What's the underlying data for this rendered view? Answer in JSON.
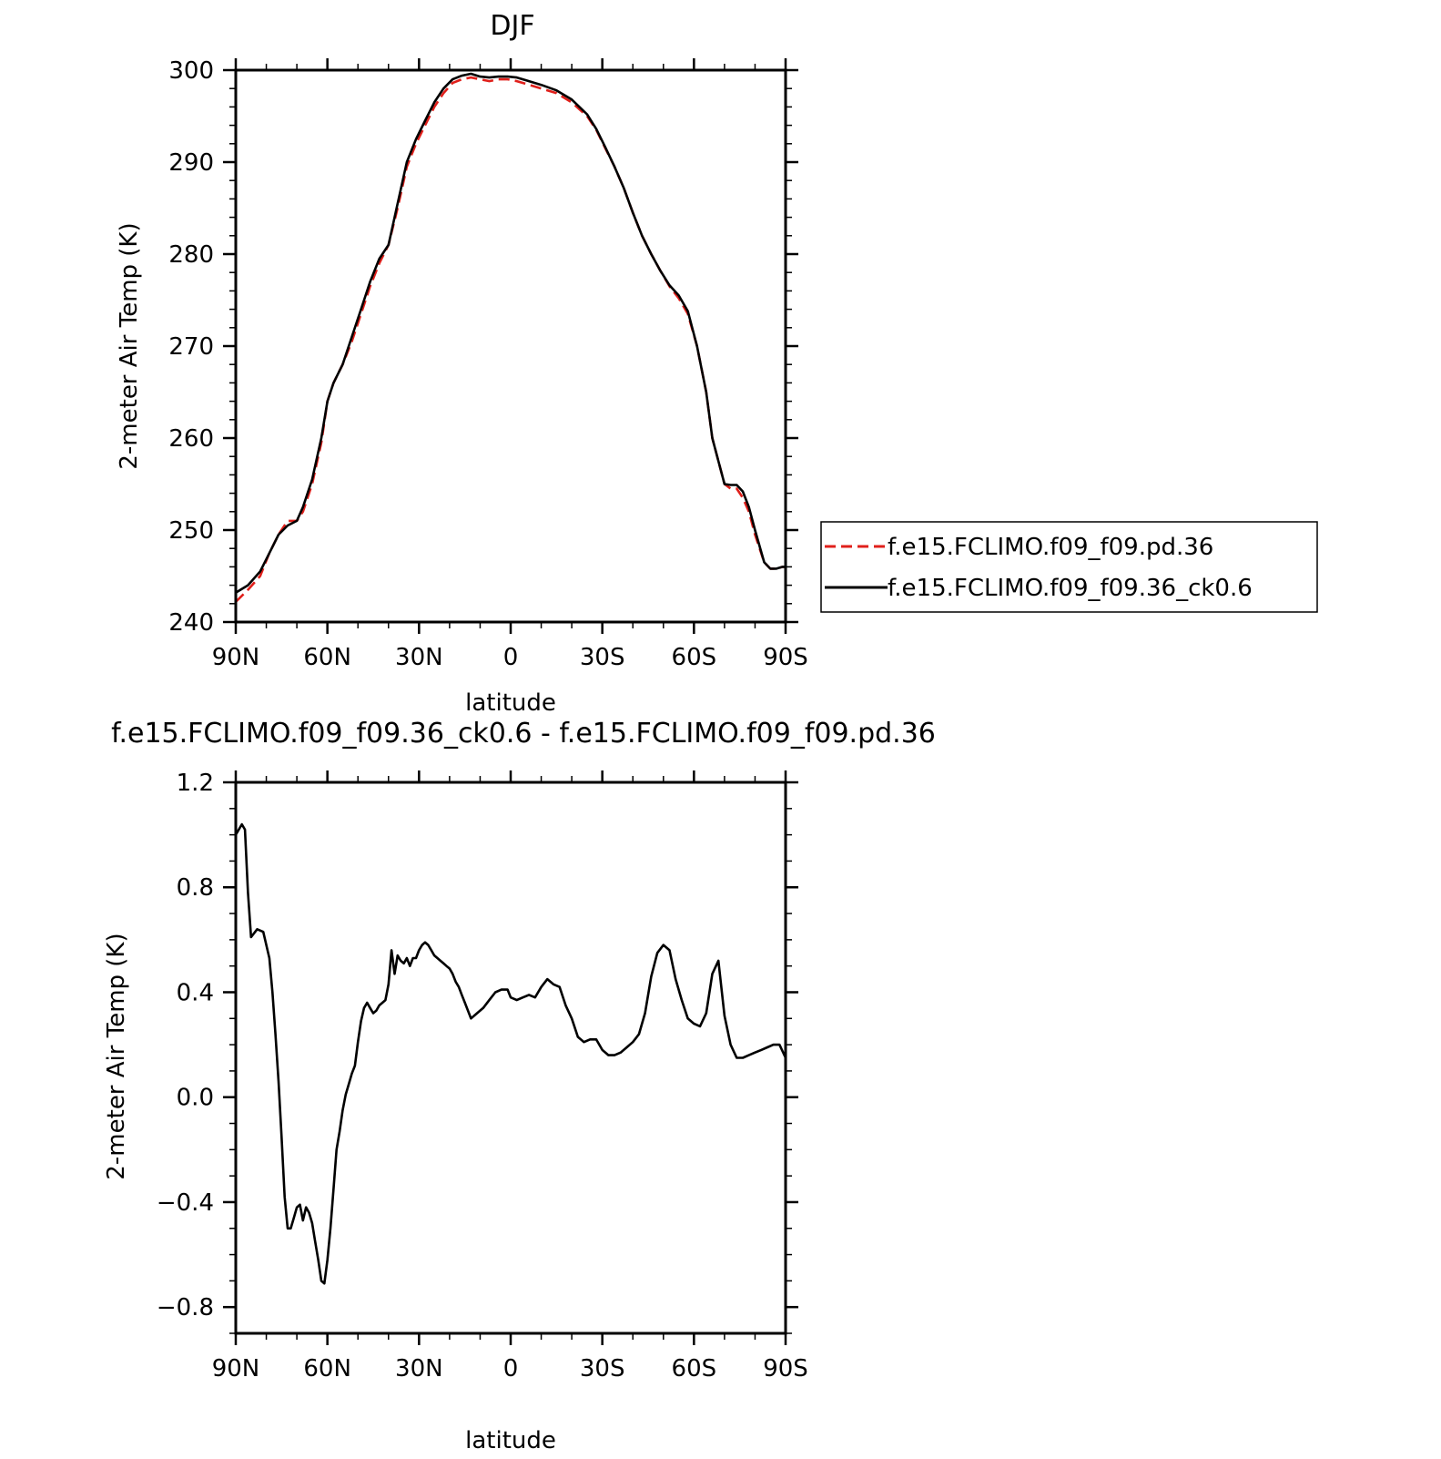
{
  "colors": {
    "control": "#e0201b",
    "experiment": "#000000",
    "axis": "#000000",
    "background": "#ffffff"
  },
  "chart_data": [
    {
      "type": "line",
      "title": "DJF",
      "xlabel": "latitude",
      "ylabel": "2-meter Air Temp (K)",
      "xlim": [
        90,
        -90
      ],
      "ylim": [
        240,
        300
      ],
      "x_ticks": [
        90,
        60,
        30,
        0,
        -30,
        -60,
        -90
      ],
      "x_tick_labels": [
        "90N",
        "60N",
        "30N",
        "0",
        "30S",
        "60S",
        "90S"
      ],
      "y_ticks": [
        240,
        250,
        260,
        270,
        280,
        290,
        300
      ],
      "y_tick_labels": [
        "240",
        "250",
        "260",
        "270",
        "280",
        "290",
        "300"
      ],
      "grid": false,
      "legend_position": "right",
      "series": [
        {
          "name": "f.e15.FCLIMO.f09_f09.pd.36",
          "style": "dashed",
          "color": "#e0201b",
          "x": [
            90,
            86,
            82,
            79,
            76,
            73,
            70,
            68,
            65,
            62,
            60,
            58,
            55,
            52,
            49,
            46,
            43,
            40,
            37,
            34,
            31,
            28,
            25,
            22,
            19,
            16,
            13,
            10,
            7,
            4,
            1,
            -2,
            -5,
            -10,
            -15,
            -20,
            -25,
            -28,
            -31,
            -34,
            -37,
            -40,
            -43,
            -46,
            -49,
            -52,
            -55,
            -58,
            -61,
            -64,
            -66,
            -68,
            -70,
            -72,
            -74,
            -76,
            -78,
            -80,
            -83,
            -85,
            -87,
            -89,
            -90
          ],
          "y": [
            242.2,
            243.5,
            245.0,
            247.5,
            249.5,
            251.0,
            251.0,
            252.0,
            255.0,
            259.5,
            264.0,
            266.0,
            268.0,
            270.5,
            273.5,
            276.5,
            279.0,
            281.0,
            285.0,
            289.5,
            292.0,
            294.0,
            296.0,
            297.5,
            298.6,
            299.0,
            299.2,
            299.0,
            298.8,
            299.0,
            299.0,
            298.8,
            298.5,
            298.0,
            297.5,
            296.5,
            295.0,
            293.5,
            291.5,
            289.5,
            287.2,
            284.5,
            282.0,
            280.0,
            278.2,
            276.5,
            275.2,
            273.5,
            270.0,
            265.0,
            260.0,
            257.5,
            255.0,
            254.5,
            254.5,
            253.5,
            252.0,
            249.5,
            246.5,
            245.8,
            245.8,
            246.0,
            246.0
          ]
        },
        {
          "name": "f.e15.FCLIMO.f09_f09.36_ck0.6",
          "style": "solid",
          "color": "#000000",
          "x": [
            90,
            86,
            82,
            79,
            76,
            73,
            70,
            68,
            65,
            62,
            60,
            58,
            55,
            52,
            49,
            46,
            43,
            40,
            37,
            34,
            31,
            28,
            25,
            22,
            19,
            16,
            13,
            10,
            7,
            4,
            1,
            -2,
            -5,
            -10,
            -15,
            -20,
            -25,
            -28,
            -31,
            -34,
            -37,
            -40,
            -43,
            -46,
            -49,
            -52,
            -55,
            -58,
            -61,
            -64,
            -66,
            -68,
            -70,
            -72,
            -74,
            -76,
            -78,
            -80,
            -83,
            -85,
            -87,
            -89,
            -90
          ],
          "y": [
            243.2,
            244.0,
            245.5,
            247.5,
            249.5,
            250.5,
            251.0,
            252.5,
            255.5,
            260.0,
            264.0,
            266.0,
            268.0,
            271.0,
            274.0,
            277.0,
            279.5,
            281.0,
            285.5,
            290.0,
            292.5,
            294.5,
            296.5,
            298.0,
            299.0,
            299.4,
            299.6,
            299.3,
            299.2,
            299.3,
            299.3,
            299.2,
            298.9,
            298.4,
            297.8,
            296.8,
            295.2,
            293.6,
            291.6,
            289.5,
            287.2,
            284.5,
            282.0,
            280.0,
            278.2,
            276.6,
            275.5,
            273.8,
            270.0,
            265.0,
            260.0,
            257.5,
            255.0,
            254.9,
            254.9,
            254.2,
            252.5,
            250.0,
            246.5,
            245.8,
            245.8,
            246.0,
            246.0
          ]
        }
      ]
    },
    {
      "type": "line",
      "title": "f.e15.FCLIMO.f09_f09.36_ck0.6 - f.e15.FCLIMO.f09_f09.pd.36",
      "xlabel": "latitude",
      "ylabel": "2-meter Air Temp (K)",
      "xlim": [
        90,
        -90
      ],
      "ylim": [
        -0.9,
        1.2
      ],
      "x_ticks": [
        90,
        60,
        30,
        0,
        -30,
        -60,
        -90
      ],
      "x_tick_labels": [
        "90N",
        "60N",
        "30N",
        "0",
        "30S",
        "60S",
        "90S"
      ],
      "y_ticks": [
        -0.8,
        -0.4,
        0.0,
        0.4,
        0.8,
        1.2
      ],
      "y_tick_labels": [
        "−0.8",
        "−0.4",
        "0.0",
        "0.4",
        "0.8",
        "1.2"
      ],
      "grid": false,
      "series": [
        {
          "style": "solid",
          "color": "#000000",
          "x": [
            90,
            88,
            87,
            86,
            85,
            83,
            81,
            79,
            78,
            77,
            76,
            75,
            74,
            73,
            72,
            71,
            70,
            69,
            68,
            67,
            66,
            65,
            64,
            63,
            62,
            61,
            60,
            59,
            58,
            57,
            56,
            55,
            54,
            53,
            52,
            51,
            50,
            49,
            48,
            47,
            46,
            45,
            44,
            43,
            42,
            41,
            40,
            39,
            38,
            37,
            36,
            35,
            34,
            33,
            32,
            31,
            30,
            29,
            28,
            27,
            26,
            25,
            24,
            23,
            22,
            21,
            20,
            19,
            18,
            17,
            16,
            15,
            13,
            11,
            9,
            7,
            5,
            3,
            1,
            0,
            -2,
            -4,
            -6,
            -8,
            -10,
            -12,
            -14,
            -16,
            -18,
            -20,
            -22,
            -24,
            -26,
            -28,
            -30,
            -32,
            -34,
            -36,
            -38,
            -40,
            -42,
            -44,
            -46,
            -48,
            -50,
            -52,
            -54,
            -56,
            -58,
            -60,
            -62,
            -64,
            -66,
            -68,
            -70,
            -72,
            -74,
            -76,
            -78,
            -80,
            -82,
            -84,
            -86,
            -88,
            -90
          ],
          "y": [
            1.0,
            1.04,
            1.02,
            0.78,
            0.61,
            0.64,
            0.63,
            0.53,
            0.4,
            0.24,
            0.06,
            -0.15,
            -0.38,
            -0.5,
            -0.5,
            -0.46,
            -0.42,
            -0.41,
            -0.47,
            -0.42,
            -0.44,
            -0.48,
            -0.55,
            -0.62,
            -0.7,
            -0.71,
            -0.62,
            -0.5,
            -0.35,
            -0.2,
            -0.13,
            -0.05,
            0.01,
            0.05,
            0.09,
            0.12,
            0.21,
            0.29,
            0.34,
            0.36,
            0.34,
            0.32,
            0.33,
            0.35,
            0.36,
            0.37,
            0.43,
            0.56,
            0.47,
            0.54,
            0.52,
            0.51,
            0.53,
            0.5,
            0.53,
            0.53,
            0.56,
            0.58,
            0.59,
            0.58,
            0.56,
            0.54,
            0.53,
            0.52,
            0.51,
            0.5,
            0.49,
            0.47,
            0.44,
            0.42,
            0.39,
            0.36,
            0.3,
            0.32,
            0.34,
            0.37,
            0.4,
            0.41,
            0.41,
            0.38,
            0.37,
            0.38,
            0.39,
            0.38,
            0.42,
            0.45,
            0.43,
            0.42,
            0.35,
            0.3,
            0.23,
            0.21,
            0.22,
            0.22,
            0.18,
            0.16,
            0.16,
            0.17,
            0.19,
            0.21,
            0.24,
            0.32,
            0.46,
            0.55,
            0.58,
            0.56,
            0.45,
            0.37,
            0.3,
            0.28,
            0.27,
            0.32,
            0.47,
            0.52,
            0.31,
            0.2,
            0.15,
            0.15,
            0.16,
            0.17,
            0.18,
            0.19,
            0.2,
            0.2,
            0.15
          ]
        }
      ]
    }
  ]
}
